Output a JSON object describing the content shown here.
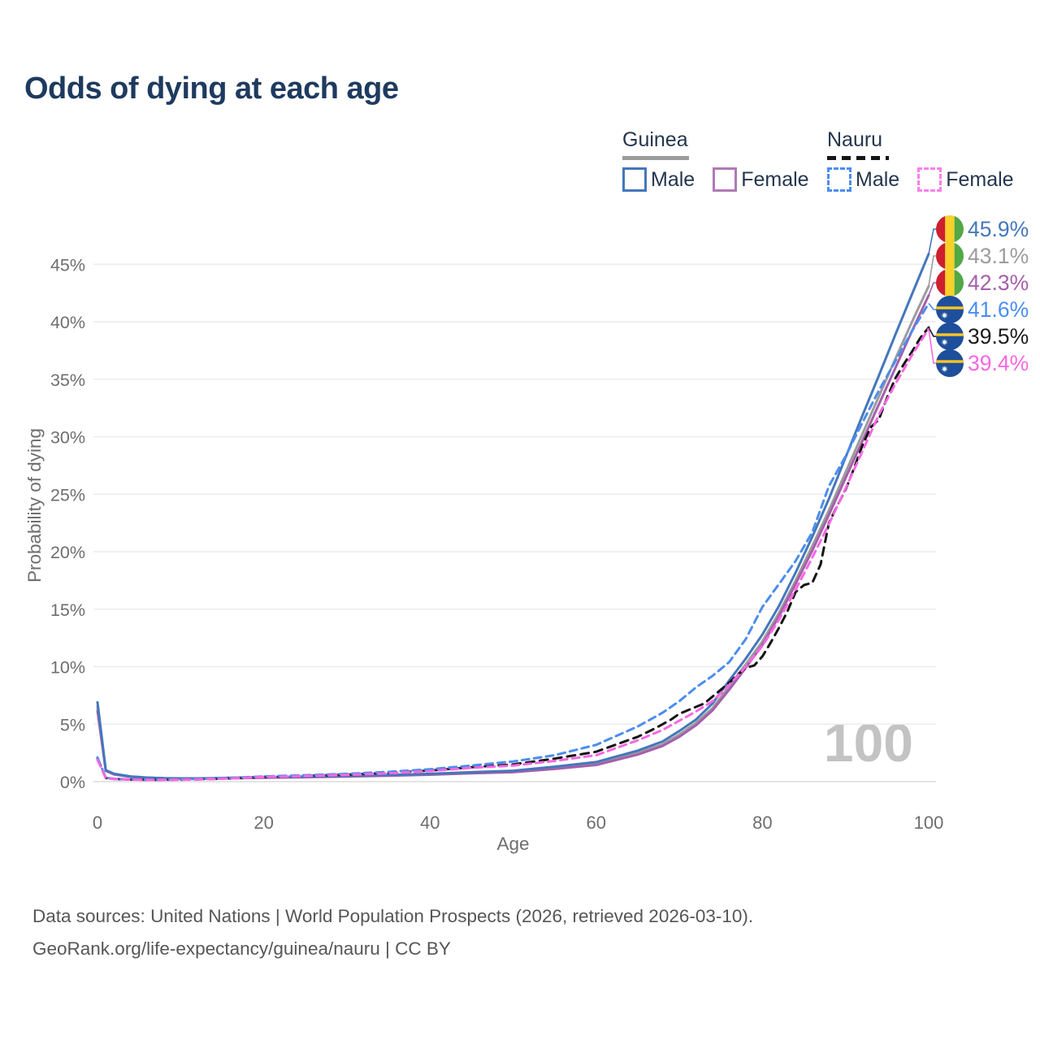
{
  "title": "Odds of dying at each age",
  "watermark": "100",
  "axes": {
    "x": {
      "label": "Age",
      "ticks": [
        0,
        20,
        40,
        60,
        80,
        100
      ]
    },
    "y": {
      "label": "Probability of dying",
      "ticks": [
        0,
        5,
        10,
        15,
        20,
        25,
        30,
        35,
        40,
        45
      ],
      "tick_suffix": "%"
    }
  },
  "legend": {
    "groups": [
      {
        "label": "Guinea",
        "swatch_style": "solid",
        "swatch_color": "#9c9c9c",
        "items": [
          {
            "label": "Male",
            "color": "#4577bb",
            "style": "solid"
          },
          {
            "label": "Female",
            "color": "#b279b6",
            "style": "solid"
          }
        ]
      },
      {
        "label": "Nauru",
        "swatch_style": "dashed",
        "swatch_color": "#151515",
        "items": [
          {
            "label": "Male",
            "color": "#4b8df0",
            "style": "dashed"
          },
          {
            "label": "Female",
            "color": "#fb80ea",
            "style": "dashed"
          }
        ]
      }
    ]
  },
  "footer": {
    "line1": "Data sources: United Nations | World Population Prospects (2026, retrieved 2026-03-10).",
    "line2": "GeoRank.org/life-expectancy/guinea/nauru | CC BY"
  },
  "chart_data": {
    "type": "line",
    "title": "Odds of dying at each age",
    "xlabel": "Age",
    "ylabel": "Probability of dying",
    "xlim": [
      0,
      100
    ],
    "ylim": [
      0,
      47
    ],
    "grid": "horizontal",
    "legend_position": "top-right",
    "series": [
      {
        "name": "Guinea Male",
        "color": "#4577bb",
        "dash": false,
        "flag": "guinea",
        "end_label": "45.9%",
        "label_color": "#4577bb",
        "points": [
          [
            0,
            6.9
          ],
          [
            1,
            1.0
          ],
          [
            2,
            0.68
          ],
          [
            4,
            0.45
          ],
          [
            6,
            0.35
          ],
          [
            8,
            0.3
          ],
          [
            10,
            0.28
          ],
          [
            12,
            0.28
          ],
          [
            14,
            0.3
          ],
          [
            16,
            0.33
          ],
          [
            18,
            0.36
          ],
          [
            20,
            0.38
          ],
          [
            25,
            0.44
          ],
          [
            30,
            0.5
          ],
          [
            35,
            0.58
          ],
          [
            40,
            0.68
          ],
          [
            45,
            0.82
          ],
          [
            50,
            0.95
          ],
          [
            55,
            1.3
          ],
          [
            60,
            1.7
          ],
          [
            65,
            2.7
          ],
          [
            68,
            3.5
          ],
          [
            70,
            4.4
          ],
          [
            72,
            5.4
          ],
          [
            74,
            6.8
          ],
          [
            76,
            8.8
          ],
          [
            78,
            10.7
          ],
          [
            80,
            12.8
          ],
          [
            82,
            15.3
          ],
          [
            84,
            18.2
          ],
          [
            86,
            21.3
          ],
          [
            88,
            24.6
          ],
          [
            90,
            28.2
          ],
          [
            92,
            31.8
          ],
          [
            94,
            35.3
          ],
          [
            96,
            38.9
          ],
          [
            98,
            42.4
          ],
          [
            100,
            45.9
          ]
        ]
      },
      {
        "name": "Guinea",
        "color": "#9c9c9c",
        "dash": false,
        "flag": "guinea",
        "end_label": "43.1%",
        "label_color": "#9c9c9c",
        "points": [
          [
            0,
            6.5
          ],
          [
            1,
            0.97
          ],
          [
            2,
            0.65
          ],
          [
            4,
            0.43
          ],
          [
            6,
            0.34
          ],
          [
            8,
            0.29
          ],
          [
            10,
            0.27
          ],
          [
            12,
            0.27
          ],
          [
            14,
            0.28
          ],
          [
            16,
            0.31
          ],
          [
            18,
            0.33
          ],
          [
            20,
            0.35
          ],
          [
            25,
            0.41
          ],
          [
            30,
            0.47
          ],
          [
            35,
            0.54
          ],
          [
            40,
            0.63
          ],
          [
            45,
            0.76
          ],
          [
            50,
            0.88
          ],
          [
            55,
            1.2
          ],
          [
            60,
            1.55
          ],
          [
            65,
            2.5
          ],
          [
            68,
            3.25
          ],
          [
            70,
            4.1
          ],
          [
            72,
            5.1
          ],
          [
            74,
            6.4
          ],
          [
            76,
            8.3
          ],
          [
            78,
            10.2
          ],
          [
            80,
            12.2
          ],
          [
            82,
            14.7
          ],
          [
            84,
            17.5
          ],
          [
            86,
            20.5
          ],
          [
            88,
            23.6
          ],
          [
            90,
            26.9
          ],
          [
            92,
            30.2
          ],
          [
            94,
            33.5
          ],
          [
            96,
            36.8
          ],
          [
            98,
            40.0
          ],
          [
            100,
            43.1
          ]
        ]
      },
      {
        "name": "Guinea Female",
        "color": "#a55fab",
        "dash": false,
        "flag": "guinea",
        "end_label": "42.3%",
        "label_color": "#a55fab",
        "points": [
          [
            0,
            6.15
          ],
          [
            1,
            0.93
          ],
          [
            2,
            0.62
          ],
          [
            4,
            0.41
          ],
          [
            6,
            0.33
          ],
          [
            8,
            0.28
          ],
          [
            10,
            0.26
          ],
          [
            12,
            0.26
          ],
          [
            14,
            0.27
          ],
          [
            16,
            0.29
          ],
          [
            18,
            0.31
          ],
          [
            20,
            0.33
          ],
          [
            25,
            0.38
          ],
          [
            30,
            0.44
          ],
          [
            35,
            0.51
          ],
          [
            40,
            0.6
          ],
          [
            45,
            0.72
          ],
          [
            50,
            0.82
          ],
          [
            55,
            1.1
          ],
          [
            60,
            1.45
          ],
          [
            65,
            2.35
          ],
          [
            68,
            3.1
          ],
          [
            70,
            3.9
          ],
          [
            72,
            4.9
          ],
          [
            74,
            6.2
          ],
          [
            76,
            8.0
          ],
          [
            78,
            9.9
          ],
          [
            80,
            11.9
          ],
          [
            82,
            14.4
          ],
          [
            84,
            17.2
          ],
          [
            86,
            20.1
          ],
          [
            88,
            23.2
          ],
          [
            90,
            26.4
          ],
          [
            92,
            29.6
          ],
          [
            94,
            32.8
          ],
          [
            96,
            36.0
          ],
          [
            98,
            39.2
          ],
          [
            100,
            42.3
          ]
        ]
      },
      {
        "name": "Nauru Male",
        "color": "#4b8df0",
        "dash": true,
        "flag": "nauru",
        "end_label": "41.6%",
        "label_color": "#4b8df0",
        "points": [
          [
            0,
            2.1
          ],
          [
            1,
            0.34
          ],
          [
            2,
            0.25
          ],
          [
            4,
            0.19
          ],
          [
            6,
            0.17
          ],
          [
            8,
            0.17
          ],
          [
            10,
            0.19
          ],
          [
            12,
            0.22
          ],
          [
            14,
            0.27
          ],
          [
            16,
            0.33
          ],
          [
            18,
            0.39
          ],
          [
            20,
            0.45
          ],
          [
            25,
            0.56
          ],
          [
            30,
            0.68
          ],
          [
            35,
            0.85
          ],
          [
            40,
            1.08
          ],
          [
            45,
            1.4
          ],
          [
            50,
            1.75
          ],
          [
            55,
            2.3
          ],
          [
            60,
            3.2
          ],
          [
            65,
            4.8
          ],
          [
            68,
            6.0
          ],
          [
            70,
            7.0
          ],
          [
            72,
            8.2
          ],
          [
            74,
            9.2
          ],
          [
            76,
            10.4
          ],
          [
            78,
            12.4
          ],
          [
            80,
            15.2
          ],
          [
            82,
            17.2
          ],
          [
            84,
            19.2
          ],
          [
            86,
            21.7
          ],
          [
            88,
            25.7
          ],
          [
            90,
            28.3
          ],
          [
            92,
            31.2
          ],
          [
            94,
            34.0
          ],
          [
            96,
            36.6
          ],
          [
            98,
            39.2
          ],
          [
            100,
            41.6
          ]
        ]
      },
      {
        "name": "Nauru",
        "color": "#151515",
        "dash": true,
        "flag": "nauru",
        "end_label": "39.5%",
        "label_color": "#1c1c1c",
        "points": [
          [
            0,
            2.0
          ],
          [
            1,
            0.32
          ],
          [
            2,
            0.23
          ],
          [
            4,
            0.18
          ],
          [
            6,
            0.16
          ],
          [
            8,
            0.16
          ],
          [
            10,
            0.17
          ],
          [
            12,
            0.2
          ],
          [
            14,
            0.24
          ],
          [
            16,
            0.29
          ],
          [
            18,
            0.34
          ],
          [
            20,
            0.41
          ],
          [
            25,
            0.5
          ],
          [
            30,
            0.61
          ],
          [
            35,
            0.76
          ],
          [
            40,
            0.96
          ],
          [
            45,
            1.25
          ],
          [
            50,
            1.5
          ],
          [
            55,
            2.0
          ],
          [
            60,
            2.6
          ],
          [
            65,
            3.9
          ],
          [
            67,
            4.6
          ],
          [
            68,
            5.0
          ],
          [
            69,
            5.4
          ],
          [
            70,
            5.9
          ],
          [
            71,
            6.2
          ],
          [
            72,
            6.5
          ],
          [
            73,
            6.8
          ],
          [
            74,
            7.4
          ],
          [
            75,
            8.0
          ],
          [
            76,
            8.6
          ],
          [
            77,
            9.3
          ],
          [
            78,
            9.9
          ],
          [
            79,
            10.1
          ],
          [
            80,
            10.9
          ],
          [
            81,
            12.1
          ],
          [
            82,
            13.4
          ],
          [
            83,
            14.8
          ],
          [
            84,
            16.5
          ],
          [
            85,
            17.1
          ],
          [
            86,
            17.3
          ],
          [
            87,
            18.9
          ],
          [
            88,
            22.5
          ],
          [
            89,
            24.0
          ],
          [
            90,
            25.4
          ],
          [
            91,
            27.2
          ],
          [
            92,
            29.2
          ],
          [
            93,
            30.8
          ],
          [
            94,
            31.5
          ],
          [
            95,
            33.4
          ],
          [
            96,
            35.1
          ],
          [
            97,
            36.3
          ],
          [
            98,
            37.4
          ],
          [
            99,
            38.6
          ],
          [
            100,
            39.5
          ]
        ]
      },
      {
        "name": "Nauru Female",
        "color": "#f967e3",
        "dash": true,
        "flag": "nauru",
        "end_label": "39.4%",
        "label_color": "#f967e3",
        "points": [
          [
            0,
            1.9
          ],
          [
            1,
            0.3
          ],
          [
            2,
            0.22
          ],
          [
            4,
            0.17
          ],
          [
            6,
            0.15
          ],
          [
            8,
            0.15
          ],
          [
            10,
            0.16
          ],
          [
            12,
            0.19
          ],
          [
            14,
            0.23
          ],
          [
            16,
            0.28
          ],
          [
            18,
            0.33
          ],
          [
            20,
            0.4
          ],
          [
            25,
            0.49
          ],
          [
            30,
            0.59
          ],
          [
            35,
            0.73
          ],
          [
            40,
            0.92
          ],
          [
            45,
            1.2
          ],
          [
            50,
            1.4
          ],
          [
            55,
            1.8
          ],
          [
            60,
            2.3
          ],
          [
            65,
            3.6
          ],
          [
            68,
            4.5
          ],
          [
            70,
            5.3
          ],
          [
            72,
            6.1
          ],
          [
            74,
            7.0
          ],
          [
            76,
            8.4
          ],
          [
            78,
            10.0
          ],
          [
            80,
            11.8
          ],
          [
            82,
            14.1
          ],
          [
            84,
            16.7
          ],
          [
            86,
            19.5
          ],
          [
            88,
            22.4
          ],
          [
            90,
            25.5
          ],
          [
            92,
            28.7
          ],
          [
            94,
            31.9
          ],
          [
            96,
            34.6
          ],
          [
            98,
            37.1
          ],
          [
            100,
            39.4
          ]
        ]
      }
    ]
  }
}
